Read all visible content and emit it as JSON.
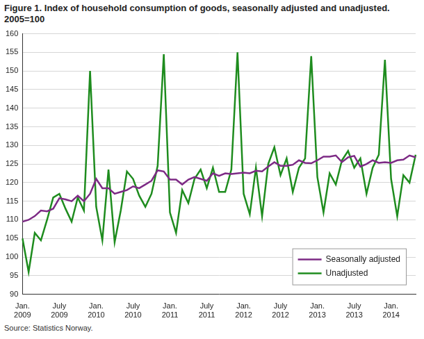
{
  "chart_data": {
    "type": "line",
    "title": "Figure 1. Index of household consumption of goods, seasonally adjusted and unadjusted. 2005=100",
    "source": "Source: Statistics Norway.",
    "categories": [
      "Jan. 2009",
      null,
      null,
      null,
      null,
      null,
      "July 2009",
      null,
      null,
      null,
      null,
      null,
      "Jan. 2010",
      null,
      null,
      null,
      null,
      null,
      "July 2010",
      null,
      null,
      null,
      null,
      null,
      "Jan. 2011",
      null,
      null,
      null,
      null,
      null,
      "July 2011",
      null,
      null,
      null,
      null,
      null,
      "Jan. 2012",
      null,
      null,
      null,
      null,
      null,
      "July 2012",
      null,
      null,
      null,
      null,
      null,
      "Jan. 2013",
      null,
      null,
      null,
      null,
      null,
      "July 2013",
      null,
      null,
      null,
      null,
      null,
      "Jan. 2014",
      null,
      null,
      null,
      null
    ],
    "series": [
      {
        "name": "Seasonally adjusted",
        "color": "#7d2a85",
        "values": [
          109.5,
          110,
          111,
          112.5,
          112.3,
          113,
          115.8,
          115.5,
          115,
          116.5,
          115,
          117,
          121,
          118.5,
          118.5,
          117,
          117.5,
          118,
          119,
          118.5,
          119.5,
          120.5,
          123.3,
          123,
          120.8,
          120.8,
          119.5,
          120.8,
          121.5,
          121,
          120.5,
          122.5,
          121.8,
          122.5,
          122.3,
          122.5,
          122.7,
          122.5,
          123.2,
          123,
          124.3,
          125.5,
          124.5,
          124.5,
          124.8,
          126,
          125.3,
          125.2,
          126,
          127,
          127,
          127.3,
          125.5,
          126.8,
          127.2,
          124.3,
          125,
          126,
          125.3,
          125.5,
          125.3,
          126,
          126.2,
          127.3,
          126.8
        ]
      },
      {
        "name": "Unadjusted",
        "color": "#1e8c1e",
        "values": [
          105,
          96,
          106.5,
          104.5,
          110,
          116,
          117,
          113,
          109.5,
          116,
          112.5,
          150,
          113.5,
          104.5,
          123.5,
          104,
          112.5,
          123,
          121,
          116.5,
          113.5,
          117,
          124.5,
          154.5,
          112,
          106.5,
          118,
          114.5,
          121,
          123.5,
          118.5,
          124,
          117.5,
          117.5,
          123.5,
          155,
          117,
          111.5,
          124,
          111,
          125,
          129.5,
          122,
          126.5,
          117.5,
          124,
          126.5,
          154,
          121.5,
          112,
          122.5,
          119.5,
          126,
          128.5,
          124,
          126.5,
          117,
          124,
          127.5,
          153,
          121,
          111,
          122,
          120,
          127.5
        ]
      }
    ],
    "ylim": [
      90,
      160
    ],
    "yticks": [
      90,
      95,
      100,
      105,
      110,
      115,
      120,
      125,
      130,
      135,
      140,
      145,
      150,
      155,
      160
    ],
    "grid": true,
    "legend": "lower right"
  }
}
